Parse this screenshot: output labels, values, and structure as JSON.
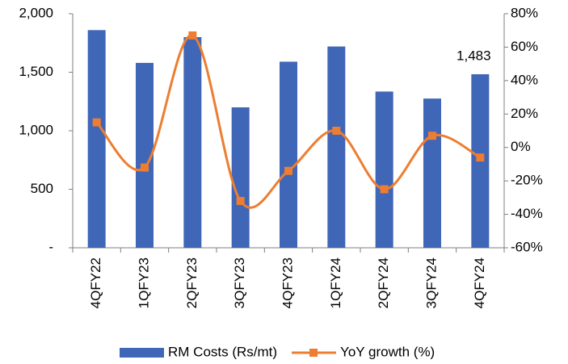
{
  "chart_data": {
    "type": "bar",
    "categories": [
      "4QFY22",
      "1QFY23",
      "2QFY23",
      "3QFY23",
      "4QFY23",
      "1QFY24",
      "2QFY24",
      "3QFY24",
      "4QFY24"
    ],
    "series": [
      {
        "name": "RM Costs (Rs/mt)",
        "color": "#4066b8",
        "type": "bar",
        "values": [
          1860,
          1580,
          1800,
          1200,
          1590,
          1720,
          1335,
          1275,
          1483
        ],
        "value_labels": [
          null,
          null,
          null,
          null,
          null,
          null,
          null,
          null,
          "1,483"
        ]
      },
      {
        "name": "YoY growth (%)",
        "color": "#ed7d31",
        "type": "line",
        "axis": "y2",
        "values": [
          15,
          -12,
          67,
          -32,
          -14,
          10,
          -25,
          7,
          -6
        ]
      }
    ],
    "ylim": [
      0,
      2000
    ],
    "yticks": [
      {
        "value": 0,
        "label": "-"
      },
      500,
      {
        "value": 1000,
        "label": "1,000"
      },
      {
        "value": 1500,
        "label": "1,500"
      },
      {
        "value": 2000,
        "label": "2,000"
      }
    ],
    "y2lim": [
      -60,
      80
    ],
    "y2ticks": [
      {
        "value": -60,
        "label": "-60%"
      },
      {
        "value": -40,
        "label": "-40%"
      },
      {
        "value": -20,
        "label": "-20%"
      },
      {
        "value": 0,
        "label": "0%"
      },
      {
        "value": 20,
        "label": "20%"
      },
      {
        "value": 40,
        "label": "40%"
      },
      {
        "value": 60,
        "label": "60%"
      },
      {
        "value": 80,
        "label": "80%"
      }
    ],
    "grid": false,
    "legend": "bottom"
  }
}
